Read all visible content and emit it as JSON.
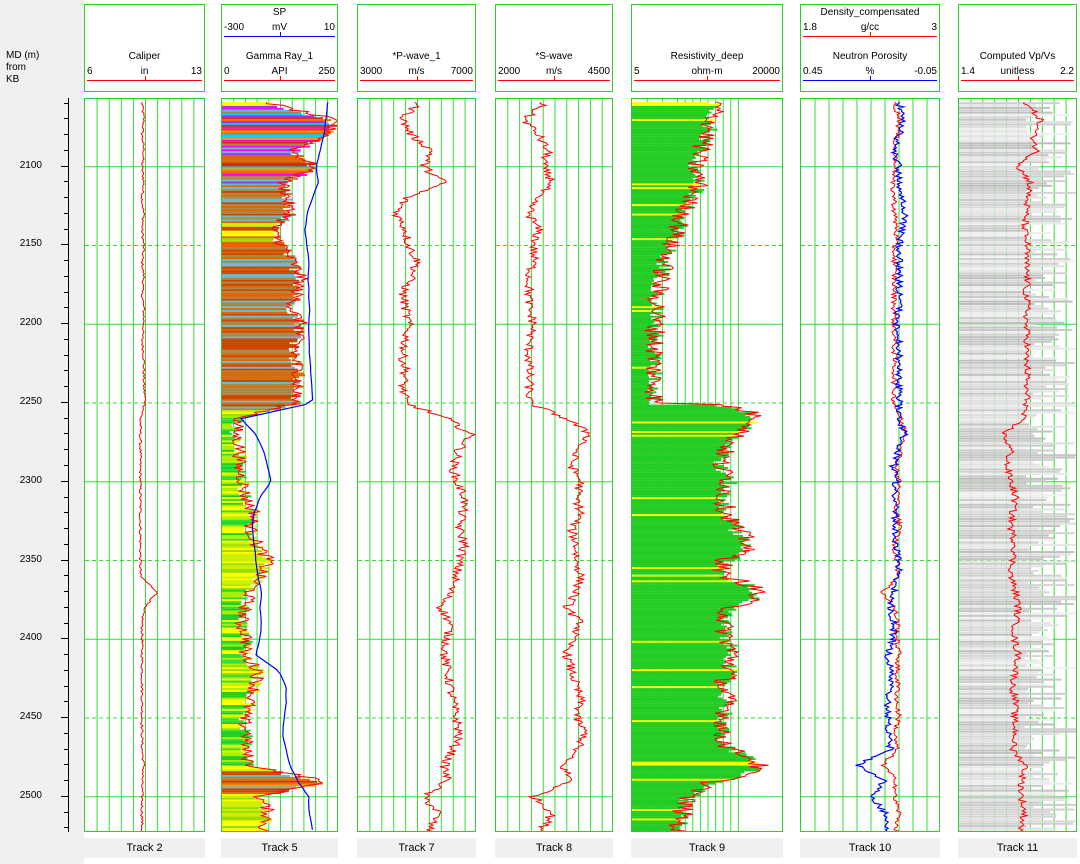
{
  "depth_axis": {
    "title": "MD (m)\nfrom\nKB",
    "labels": [
      "2100",
      "2150",
      "2200",
      "2250",
      "2300",
      "2350",
      "2400",
      "2450",
      "2500"
    ],
    "range": [
      2057,
      2523
    ]
  },
  "colors": {
    "grid": "#33dd33",
    "grid_dash": "#33dd33",
    "curve_red": "#ff0000",
    "curve_blue": "#0000ff",
    "track_border": "#2ecc2e",
    "green_fill": "#22cc22",
    "yellow_fill": "#ffff00"
  },
  "tracks": [
    {
      "id": "track2",
      "footer": "Track 2",
      "curves": [
        {
          "name": "Caliper",
          "min": "6",
          "unit": "in",
          "max": "13",
          "color": "#ff0000"
        }
      ]
    },
    {
      "id": "track5",
      "footer": "Track 5",
      "curves": [
        {
          "name": "SP",
          "min": "-300",
          "unit": "mV",
          "max": "10",
          "color": "#0000ff"
        },
        {
          "name": "Gamma Ray_1",
          "min": "0",
          "unit": "API",
          "max": "250",
          "color": "#ff0000"
        }
      ]
    },
    {
      "id": "track7",
      "footer": "Track 7",
      "curves": [
        {
          "name": "*P-wave_1",
          "min": "3000",
          "unit": "m/s",
          "max": "7000",
          "color": "#ff0000"
        }
      ]
    },
    {
      "id": "track8",
      "footer": "Track 8",
      "curves": [
        {
          "name": "*S-wave",
          "min": "2000",
          "unit": "m/s",
          "max": "4500",
          "color": "#ff0000"
        }
      ]
    },
    {
      "id": "track9",
      "footer": "Track 9",
      "curves": [
        {
          "name": "Resistivity_deep",
          "min": "5",
          "unit": "ohm-m",
          "max": "20000",
          "color": "#ff0000"
        }
      ]
    },
    {
      "id": "track10",
      "footer": "Track 10",
      "curves": [
        {
          "name": "Density_compensated",
          "min": "1.8",
          "unit": "g/cc",
          "max": "3",
          "color": "#ff0000"
        },
        {
          "name": "Neutron Porosity",
          "min": "0.45",
          "unit": "%",
          "max": "-0.05",
          "color": "#0000ff"
        }
      ]
    },
    {
      "id": "track11",
      "footer": "Track 11",
      "curves": [
        {
          "name": "Computed Vp/Vs",
          "min": "1.4",
          "unit": "unitless",
          "max": "2.2",
          "color": "#ff0000"
        }
      ]
    }
  ],
  "chart_data": {
    "type": "line",
    "ylabel": "MD (m) from KB",
    "ylim": [
      2057,
      2523
    ],
    "depth": [
      2060,
      2070,
      2080,
      2090,
      2100,
      2110,
      2120,
      2130,
      2140,
      2150,
      2160,
      2170,
      2180,
      2190,
      2200,
      2210,
      2220,
      2230,
      2240,
      2250,
      2260,
      2270,
      2280,
      2290,
      2300,
      2310,
      2320,
      2330,
      2340,
      2350,
      2360,
      2370,
      2380,
      2390,
      2400,
      2410,
      2420,
      2430,
      2440,
      2450,
      2460,
      2470,
      2480,
      2490,
      2500,
      2510,
      2520
    ],
    "series": [
      {
        "name": "Caliper",
        "track": "Track 2",
        "xlim": [
          6,
          13
        ],
        "values": [
          9.3,
          9.4,
          9.3,
          9.4,
          9.3,
          9.4,
          9.3,
          9.4,
          9.3,
          9.4,
          9.3,
          9.4,
          9.3,
          9.4,
          9.4,
          9.3,
          9.4,
          9.4,
          9.4,
          9.5,
          9.2,
          9.2,
          9.2,
          9.2,
          9.2,
          9.2,
          9.2,
          9.2,
          9.2,
          9.2,
          9.2,
          10.2,
          9.4,
          9.3,
          9.3,
          9.3,
          9.3,
          9.3,
          9.3,
          9.3,
          9.3,
          9.3,
          9.4,
          9.3,
          9.3,
          9.3,
          9.3
        ]
      },
      {
        "name": "SP",
        "track": "Track 5",
        "xlim": [
          -300,
          10
        ],
        "values": [
          -20,
          -25,
          -30,
          -40,
          -50,
          -45,
          -60,
          -75,
          -80,
          -75,
          -70,
          -72,
          -70,
          -68,
          -70,
          -70,
          -68,
          -65,
          -62,
          -60,
          -250,
          -210,
          -190,
          -180,
          -170,
          -200,
          -215,
          -220,
          -215,
          -210,
          -205,
          -195,
          -200,
          -195,
          -200,
          -210,
          -150,
          -130,
          -130,
          -135,
          -140,
          -130,
          -120,
          -100,
          -70,
          -70,
          -60
        ]
      },
      {
        "name": "Gamma Ray_1",
        "track": "Track 5",
        "xlim": [
          0,
          250
        ],
        "values": [
          105,
          235,
          228,
          150,
          200,
          130,
          140,
          145,
          105,
          130,
          150,
          170,
          160,
          150,
          170,
          160,
          155,
          165,
          160,
          155,
          35,
          30,
          40,
          35,
          45,
          50,
          70,
          60,
          75,
          100,
          80,
          60,
          50,
          40,
          55,
          45,
          80,
          70,
          60,
          45,
          55,
          50,
          60,
          220,
          80,
          100,
          90
        ]
      },
      {
        "name": "*P-wave_1",
        "track": "Track 7",
        "xlim": [
          3000,
          7000
        ],
        "values": [
          5000,
          4500,
          4800,
          5500,
          5200,
          5900,
          4600,
          4300,
          4600,
          4700,
          5000,
          4800,
          4500,
          4600,
          4700,
          4600,
          4500,
          4600,
          4500,
          4600,
          6000,
          6800,
          6400,
          6200,
          6300,
          6600,
          6500,
          6400,
          6600,
          6400,
          6300,
          6100,
          5800,
          6100,
          6000,
          5900,
          6000,
          6100,
          6200,
          6300,
          6400,
          6200,
          5900,
          6000,
          5200,
          5700,
          5400
        ]
      },
      {
        "name": "*S-wave",
        "track": "Track 8",
        "xlim": [
          2000,
          4500
        ],
        "values": [
          3000,
          2600,
          2900,
          3100,
          3000,
          3200,
          2800,
          2700,
          2900,
          2800,
          2800,
          2700,
          2700,
          2700,
          2800,
          2700,
          2700,
          2700,
          2700,
          2700,
          3500,
          4000,
          3700,
          3600,
          3800,
          3700,
          3800,
          3600,
          3700,
          3700,
          3800,
          3700,
          3500,
          3800,
          3600,
          3500,
          3600,
          3700,
          3800,
          3700,
          3900,
          3700,
          3400,
          3600,
          2800,
          3200,
          3000
        ]
      },
      {
        "name": "Resistivity_deep",
        "track": "Track 9",
        "xlim": [
          5,
          20000
        ],
        "log": true,
        "values": [
          500,
          400,
          300,
          200,
          150,
          200,
          120,
          80,
          60,
          40,
          30,
          25,
          20,
          20,
          18,
          18,
          17,
          17,
          17,
          18,
          5000,
          1500,
          800,
          600,
          1000,
          700,
          900,
          1500,
          3000,
          800,
          600,
          5000,
          1000,
          700,
          900,
          1200,
          1000,
          700,
          900,
          800,
          600,
          1000,
          5000,
          400,
          100,
          80,
          60
        ]
      },
      {
        "name": "Density_compensated",
        "track": "Track 10",
        "xlim": [
          1.8,
          3
        ],
        "values": [
          2.6,
          2.65,
          2.62,
          2.6,
          2.62,
          2.58,
          2.6,
          2.6,
          2.62,
          2.6,
          2.6,
          2.6,
          2.6,
          2.6,
          2.6,
          2.6,
          2.6,
          2.6,
          2.6,
          2.6,
          2.65,
          2.7,
          2.66,
          2.62,
          2.64,
          2.63,
          2.62,
          2.65,
          2.6,
          2.62,
          2.64,
          2.5,
          2.6,
          2.63,
          2.62,
          2.64,
          2.62,
          2.63,
          2.62,
          2.64,
          2.6,
          2.62,
          2.5,
          2.62,
          2.6,
          2.64,
          2.62
        ]
      },
      {
        "name": "Neutron Porosity",
        "track": "Track 10",
        "xlim": [
          0.45,
          -0.05
        ],
        "values": [
          0.1,
          0.08,
          0.1,
          0.12,
          0.1,
          0.1,
          0.09,
          0.08,
          0.09,
          0.1,
          0.1,
          0.1,
          0.1,
          0.1,
          0.11,
          0.1,
          0.1,
          0.1,
          0.1,
          0.1,
          0.1,
          0.08,
          0.1,
          0.12,
          0.11,
          0.12,
          0.11,
          0.12,
          0.11,
          0.1,
          0.1,
          0.12,
          0.13,
          0.12,
          0.12,
          0.14,
          0.13,
          0.13,
          0.14,
          0.14,
          0.14,
          0.13,
          0.25,
          0.15,
          0.2,
          0.15,
          0.14
        ]
      },
      {
        "name": "Computed Vp/Vs",
        "track": "Track 11",
        "xlim": [
          1.4,
          2.2
        ],
        "values": [
          1.85,
          1.95,
          1.9,
          1.92,
          1.8,
          1.88,
          1.86,
          1.85,
          1.84,
          1.86,
          1.85,
          1.86,
          1.85,
          1.86,
          1.85,
          1.86,
          1.85,
          1.86,
          1.85,
          1.86,
          1.82,
          1.7,
          1.75,
          1.72,
          1.75,
          1.78,
          1.76,
          1.75,
          1.78,
          1.76,
          1.75,
          1.78,
          1.8,
          1.78,
          1.77,
          1.8,
          1.78,
          1.76,
          1.78,
          1.77,
          1.78,
          1.76,
          1.85,
          1.82,
          1.82,
          1.84,
          1.82
        ]
      }
    ]
  }
}
